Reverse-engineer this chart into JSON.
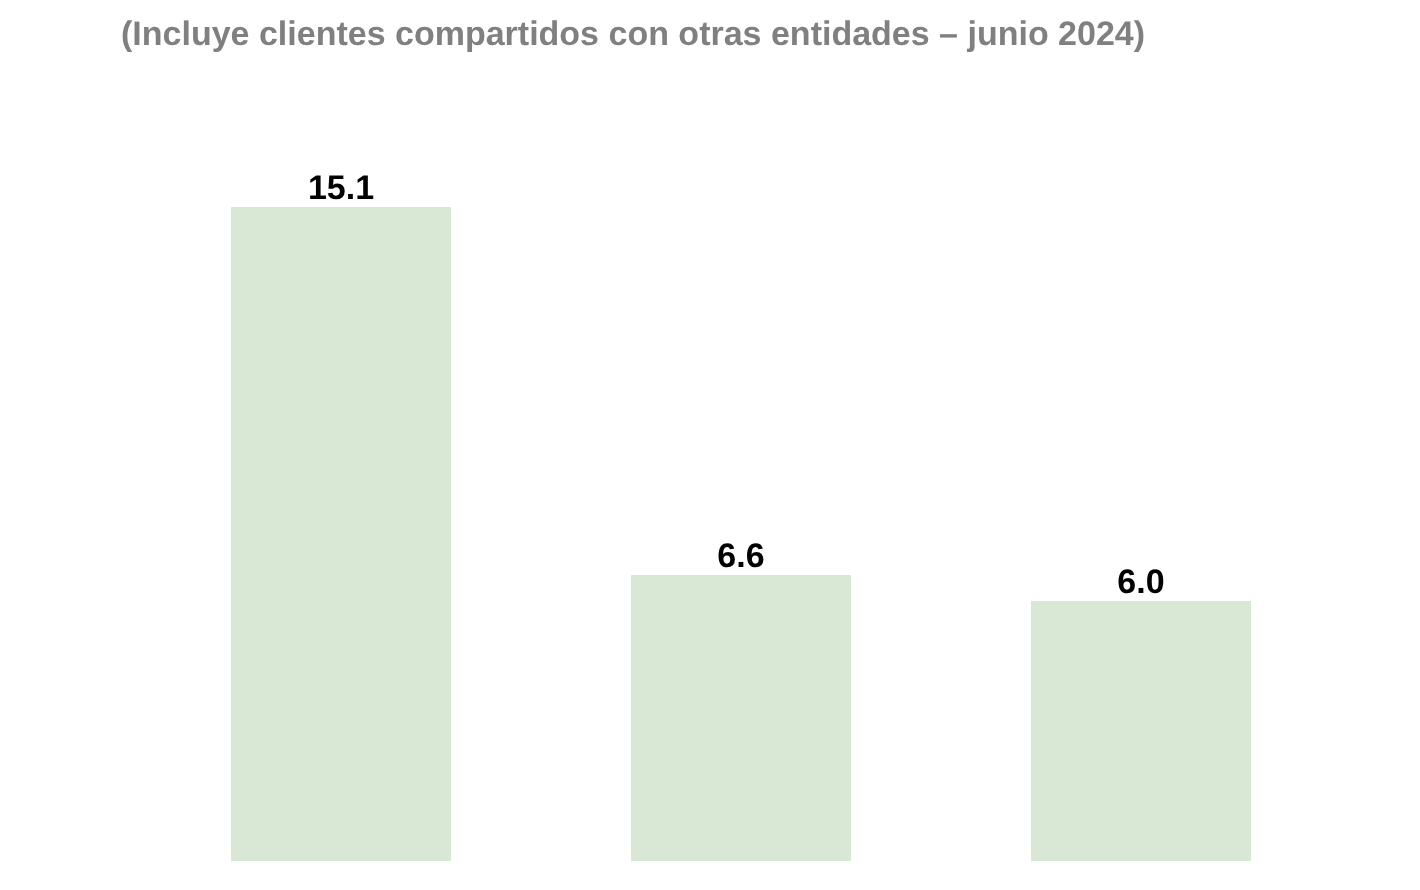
{
  "chart_data": {
    "type": "bar",
    "subtitle": "(Incluye clientes compartidos con otras entidades – junio 2024)",
    "categories": [
      null,
      null,
      null
    ],
    "values": [
      15.1,
      6.6,
      6.0
    ],
    "color": "#d9e8d4",
    "value_labels": [
      "15.1",
      "6.6",
      "6.0"
    ]
  }
}
